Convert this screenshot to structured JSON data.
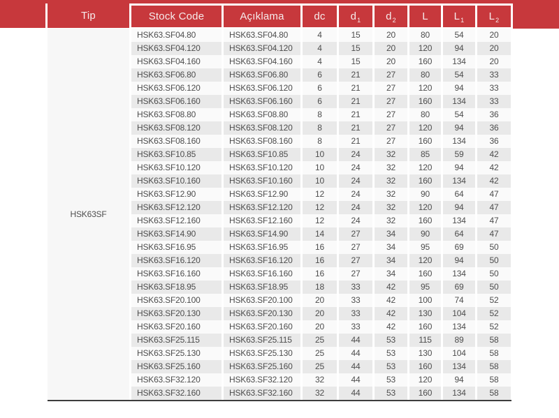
{
  "colors": {
    "header_red": "#c7383c",
    "header_text": "#f6ebeb",
    "row_base": "#fafafa",
    "row_alt": "#e9e9e9",
    "tip_col_bg": "#f7f7f7",
    "body_text": "#4d4d4d",
    "bottom_line": "#3d3d3d"
  },
  "table": {
    "tip_label": "Tip",
    "tip_value": "HSK63SF",
    "columns": [
      {
        "name": "stock-code",
        "label": "Stock Code",
        "sub": ""
      },
      {
        "name": "aciklama",
        "label": "Açıklama",
        "sub": ""
      },
      {
        "name": "dc",
        "label": "dc",
        "sub": ""
      },
      {
        "name": "d1",
        "label": "d",
        "sub": "1"
      },
      {
        "name": "d2",
        "label": "d",
        "sub": "2"
      },
      {
        "name": "l",
        "label": "L",
        "sub": ""
      },
      {
        "name": "l1",
        "label": "L",
        "sub": "1"
      },
      {
        "name": "l2",
        "label": "L",
        "sub": "2"
      }
    ],
    "rows": [
      [
        "HSK63.SF04.80",
        "HSK63.SF04.80",
        "4",
        "15",
        "20",
        "80",
        "54",
        "20"
      ],
      [
        "HSK63.SF04.120",
        "HSK63.SF04.120",
        "4",
        "15",
        "20",
        "120",
        "94",
        "20"
      ],
      [
        "HSK63.SF04.160",
        "HSK63.SF04.160",
        "4",
        "15",
        "20",
        "160",
        "134",
        "20"
      ],
      [
        "HSK63.SF06.80",
        "HSK63.SF06.80",
        "6",
        "21",
        "27",
        "80",
        "54",
        "33"
      ],
      [
        "HSK63.SF06.120",
        "HSK63.SF06.120",
        "6",
        "21",
        "27",
        "120",
        "94",
        "33"
      ],
      [
        "HSK63.SF06.160",
        "HSK63.SF06.160",
        "6",
        "21",
        "27",
        "160",
        "134",
        "33"
      ],
      [
        "HSK63.SF08.80",
        "HSK63.SF08.80",
        "8",
        "21",
        "27",
        "80",
        "54",
        "36"
      ],
      [
        "HSK63.SF08.120",
        "HSK63.SF08.120",
        "8",
        "21",
        "27",
        "120",
        "94",
        "36"
      ],
      [
        "HSK63.SF08.160",
        "HSK63.SF08.160",
        "8",
        "21",
        "27",
        "160",
        "134",
        "36"
      ],
      [
        "HSK63.SF10.85",
        "HSK63.SF10.85",
        "10",
        "24",
        "32",
        "85",
        "59",
        "42"
      ],
      [
        "HSK63.SF10.120",
        "HSK63.SF10.120",
        "10",
        "24",
        "32",
        "120",
        "94",
        "42"
      ],
      [
        "HSK63.SF10.160",
        "HSK63.SF10.160",
        "10",
        "24",
        "32",
        "160",
        "134",
        "42"
      ],
      [
        "HSK63.SF12.90",
        "HSK63.SF12.90",
        "12",
        "24",
        "32",
        "90",
        "64",
        "47"
      ],
      [
        "HSK63.SF12.120",
        "HSK63.SF12.120",
        "12",
        "24",
        "32",
        "120",
        "94",
        "47"
      ],
      [
        "HSK63.SF12.160",
        "HSK63.SF12.160",
        "12",
        "24",
        "32",
        "160",
        "134",
        "47"
      ],
      [
        "HSK63.SF14.90",
        "HSK63.SF14.90",
        "14",
        "27",
        "34",
        "90",
        "64",
        "47"
      ],
      [
        "HSK63.SF16.95",
        "HSK63.SF16.95",
        "16",
        "27",
        "34",
        "95",
        "69",
        "50"
      ],
      [
        "HSK63.SF16.120",
        "HSK63.SF16.120",
        "16",
        "27",
        "34",
        "120",
        "94",
        "50"
      ],
      [
        "HSK63.SF16.160",
        "HSK63.SF16.160",
        "16",
        "27",
        "34",
        "160",
        "134",
        "50"
      ],
      [
        "HSK63.SF18.95",
        "HSK63.SF18.95",
        "18",
        "33",
        "42",
        "95",
        "69",
        "50"
      ],
      [
        "HSK63.SF20.100",
        "HSK63.SF20.100",
        "20",
        "33",
        "42",
        "100",
        "74",
        "52"
      ],
      [
        "HSK63.SF20.130",
        "HSK63.SF20.130",
        "20",
        "33",
        "42",
        "130",
        "104",
        "52"
      ],
      [
        "HSK63.SF20.160",
        "HSK63.SF20.160",
        "20",
        "33",
        "42",
        "160",
        "134",
        "52"
      ],
      [
        "HSK63.SF25.115",
        "HSK63.SF25.115",
        "25",
        "44",
        "53",
        "115",
        "89",
        "58"
      ],
      [
        "HSK63.SF25.130",
        "HSK63.SF25.130",
        "25",
        "44",
        "53",
        "130",
        "104",
        "58"
      ],
      [
        "HSK63.SF25.160",
        "HSK63.SF25.160",
        "25",
        "44",
        "53",
        "160",
        "134",
        "58"
      ],
      [
        "HSK63.SF32.120",
        "HSK63.SF32.120",
        "32",
        "44",
        "53",
        "120",
        "94",
        "58"
      ],
      [
        "HSK63.SF32.160",
        "HSK63.SF32.160",
        "32",
        "44",
        "53",
        "160",
        "134",
        "58"
      ]
    ]
  }
}
